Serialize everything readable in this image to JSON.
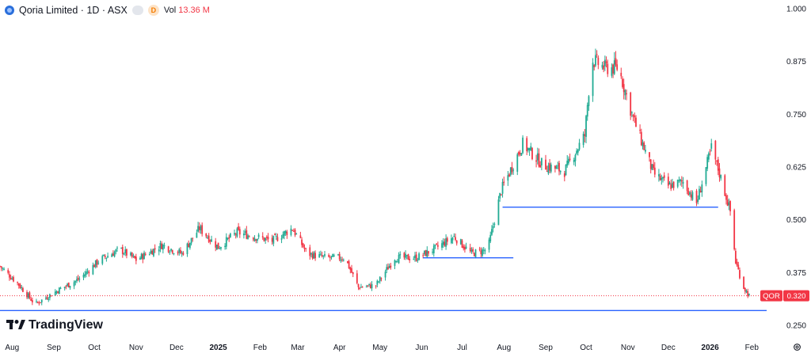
{
  "header": {
    "symbol_title": "Qoria Limited · 1D · ASX",
    "interval_badge": "D",
    "volume_label": "Vol",
    "volume_value": "13.36 M"
  },
  "branding": {
    "name": "TradingView"
  },
  "price_tag": {
    "ticker": "QOR",
    "price": "0.320"
  },
  "colors": {
    "up": "#22ab94",
    "down": "#f23645",
    "trendline": "#2962ff",
    "last_price_line": "#f23645"
  },
  "icons": {
    "logo": "qoria-logo-icon",
    "settings": "gear-icon"
  },
  "chart_data": {
    "type": "candlestick",
    "ylim": [
      0.25,
      1.0
    ],
    "y_ticks": [
      "1.000",
      "0.875",
      "0.750",
      "0.625",
      "0.500",
      "0.375",
      "0.250"
    ],
    "y_tick_values": [
      1.0,
      0.875,
      0.75,
      0.625,
      0.5,
      0.375,
      0.25
    ],
    "x_labels": [
      "Aug",
      "Sep",
      "Oct",
      "Nov",
      "Dec",
      "2025",
      "Feb",
      "Mar",
      "Apr",
      "May",
      "Jun",
      "Jul",
      "Aug",
      "Sep",
      "Oct",
      "Nov",
      "Dec",
      "2026",
      "Feb"
    ],
    "x_label_dates": [
      "2024-08-01",
      "2024-09-01",
      "2024-10-01",
      "2024-11-01",
      "2024-12-01",
      "2025-01-01",
      "2025-02-01",
      "2025-03-01",
      "2025-04-01",
      "2025-05-01",
      "2025-06-01",
      "2025-07-01",
      "2025-08-01",
      "2025-09-01",
      "2025-10-01",
      "2025-11-01",
      "2025-12-01",
      "2026-01-01",
      "2026-02-01"
    ],
    "x_range": [
      "2024-07-23",
      "2026-02-12"
    ],
    "close_path": [
      [
        "2024-07-23",
        0.39
      ],
      [
        "2024-08-05",
        0.35
      ],
      [
        "2024-08-18",
        0.3
      ],
      [
        "2024-09-05",
        0.335
      ],
      [
        "2024-09-20",
        0.36
      ],
      [
        "2024-10-05",
        0.405
      ],
      [
        "2024-10-20",
        0.43
      ],
      [
        "2024-11-01",
        0.405
      ],
      [
        "2024-11-20",
        0.44
      ],
      [
        "2024-12-05",
        0.42
      ],
      [
        "2024-12-18",
        0.48
      ],
      [
        "2025-01-01",
        0.435
      ],
      [
        "2025-01-15",
        0.47
      ],
      [
        "2025-01-28",
        0.46
      ],
      [
        "2025-02-10",
        0.45
      ],
      [
        "2025-02-25",
        0.48
      ],
      [
        "2025-03-08",
        0.42
      ],
      [
        "2025-03-22",
        0.41
      ],
      [
        "2025-04-05",
        0.41
      ],
      [
        "2025-04-15",
        0.34
      ],
      [
        "2025-04-28",
        0.345
      ],
      [
        "2025-05-12",
        0.41
      ],
      [
        "2025-05-28",
        0.41
      ],
      [
        "2025-06-10",
        0.43
      ],
      [
        "2025-06-25",
        0.46
      ],
      [
        "2025-07-08",
        0.42
      ],
      [
        "2025-07-20",
        0.43
      ],
      [
        "2025-07-30",
        0.57
      ],
      [
        "2025-08-15",
        0.68
      ],
      [
        "2025-08-30",
        0.63
      ],
      [
        "2025-09-15",
        0.615
      ],
      [
        "2025-09-30",
        0.7
      ],
      [
        "2025-10-05",
        0.88
      ],
      [
        "2025-10-15",
        0.86
      ],
      [
        "2025-10-25",
        0.86
      ],
      [
        "2025-11-05",
        0.74
      ],
      [
        "2025-11-20",
        0.61
      ],
      [
        "2025-12-01",
        0.58
      ],
      [
        "2025-12-12",
        0.59
      ],
      [
        "2025-12-22",
        0.54
      ],
      [
        "2026-01-02",
        0.67
      ],
      [
        "2026-01-08",
        0.61
      ],
      [
        "2026-01-16",
        0.52
      ],
      [
        "2026-01-20",
        0.4
      ],
      [
        "2026-01-26",
        0.34
      ],
      [
        "2026-01-30",
        0.32
      ]
    ],
    "trendlines": [
      {
        "from": [
          "2024-07-23",
          0.285
        ],
        "to": [
          "2026-02-12",
          0.285
        ]
      },
      {
        "from": [
          "2025-06-02",
          0.41
        ],
        "to": [
          "2025-08-08",
          0.41
        ]
      },
      {
        "from": [
          "2025-07-31",
          0.53
        ],
        "to": [
          "2026-01-07",
          0.53
        ]
      }
    ],
    "last_price": 0.32
  }
}
